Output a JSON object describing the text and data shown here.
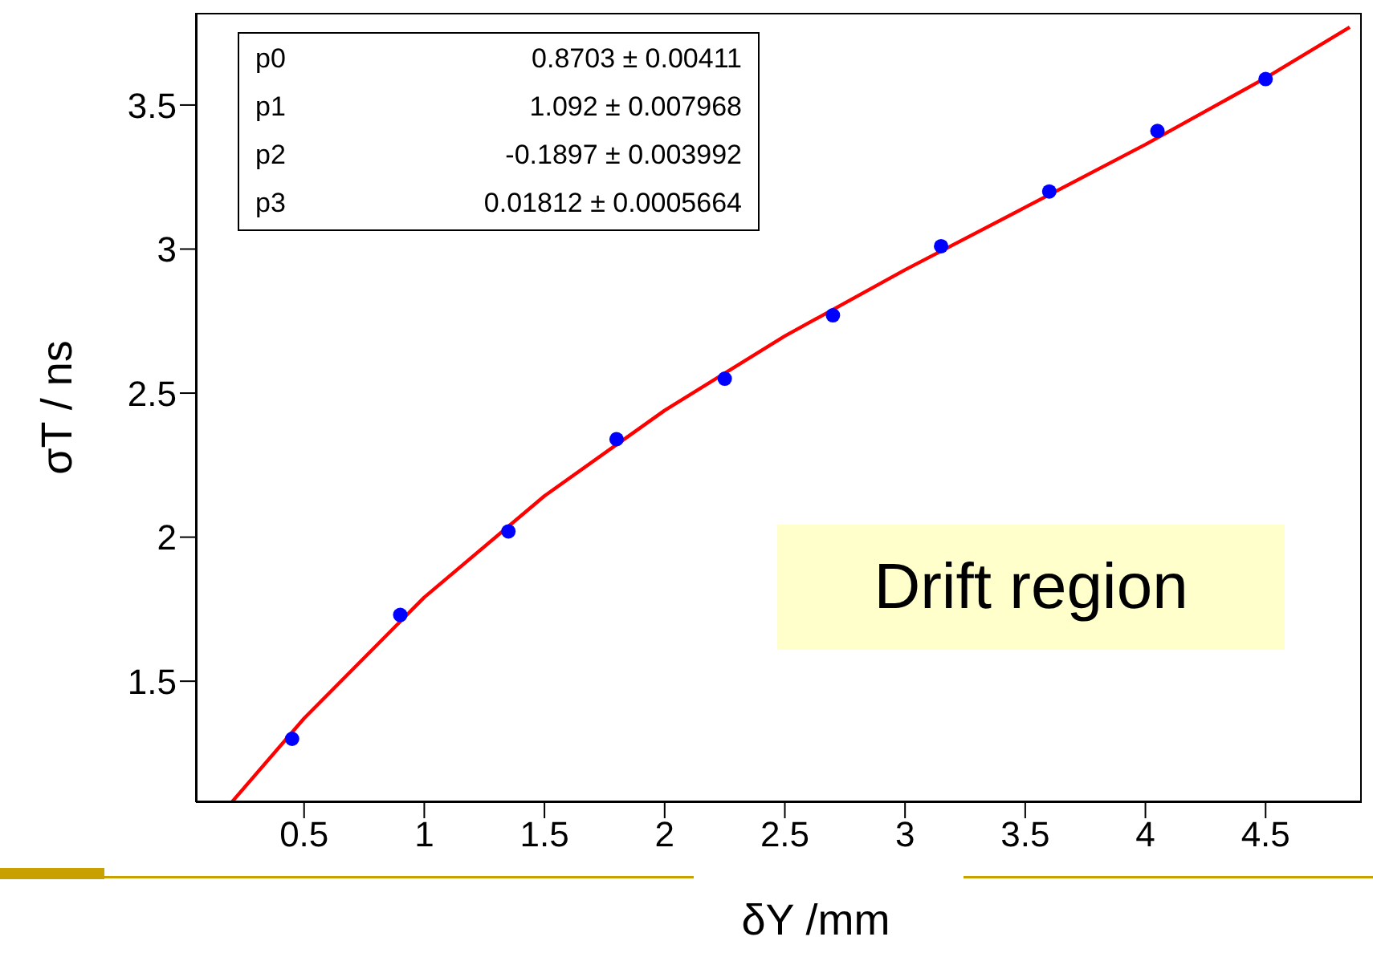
{
  "chart_data": {
    "type": "scatter",
    "xlabel": "δY /mm",
    "ylabel": "σT / ns",
    "xlim": [
      0.05,
      4.9
    ],
    "xticks": [
      0.5,
      1,
      1.5,
      2,
      2.5,
      3,
      3.5,
      4,
      4.5
    ],
    "ylim": [
      1.08,
      3.82
    ],
    "yticks": [
      1.5,
      2,
      2.5,
      3,
      3.5
    ],
    "grid": false,
    "marker": "circle",
    "series": [
      {
        "color": "#0000ff",
        "x": [
          0.45,
          0.9,
          1.35,
          1.8,
          2.25,
          2.7,
          3.15,
          3.6,
          4.05,
          4.5
        ],
        "values": [
          1.3,
          1.73,
          2.02,
          2.34,
          2.55,
          2.77,
          3.01,
          3.2,
          3.41,
          3.59
        ]
      },
      {
        "type": "line",
        "color": "#ff0000",
        "marker": "none",
        "line_style": "solid",
        "x": [
          0.2,
          0.5,
          1,
          1.5,
          2,
          2.5,
          3,
          3.5,
          4,
          4.5,
          4.85
        ],
        "values": [
          1.081,
          1.371,
          1.791,
          2.143,
          2.44,
          2.698,
          2.928,
          3.145,
          3.363,
          3.594,
          3.77
        ]
      }
    ],
    "annotations": [
      "p0 0.8703 ± 0.00411",
      "p1 1.092 ± 0.007968",
      "p2 -0.1897 ± 0.003992",
      "p3 0.01812 ± 0.0005664",
      "Drift region"
    ]
  }
}
